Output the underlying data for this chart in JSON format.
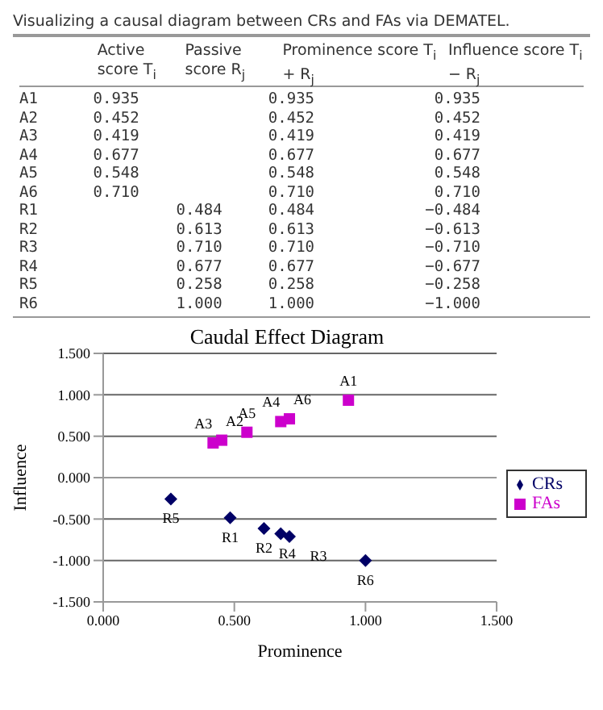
{
  "chart_data": {
    "type": "scatter",
    "title": "Caudal Effect Diagram",
    "xlabel": "Prominence",
    "ylabel": "Influence",
    "annotations": [
      "Visualizing a causal diagram between CRs and FAs via DEMATEL.",
      "Active score T$_{i}$",
      "Passive score R$_{j}$",
      "Prominence score T$_{i}$ + R$_{j}$",
      "Influence score T$_{i}$ − R$_{j}$",
      "A1      0.935              0.935             0.935",
      "A2      0.452              0.452             0.452",
      "A3      0.419              0.419             0.419",
      "A4      0.677              0.677             0.677",
      "A5      0.548              0.548             0.548",
      "A6      0.710              0.710             0.710",
      "R1               0.484     0.484            −0.484",
      "R2               0.613     0.613            −0.613",
      "R3               0.710     0.710            −0.710",
      "R4               0.677     0.677            −0.677",
      "R5               0.258     0.258            −0.258",
      "R6               1.000     1.000            −1.000"
    ],
    "xlim": [
      0,
      1.5
    ],
    "xticks": [
      {
        "value": 0,
        "label": "0.000"
      },
      {
        "value": 0.5,
        "label": "0.500"
      },
      {
        "value": 1,
        "label": "1.000"
      },
      {
        "value": 1.5,
        "label": "1.500"
      }
    ],
    "ylim": [
      -1.5,
      1.5
    ],
    "yticks": [
      {
        "value": -1.5,
        "label": "-1.500"
      },
      {
        "value": -1,
        "label": "-1.000"
      },
      {
        "value": -0.5,
        "label": "-0.500"
      },
      {
        "value": 0,
        "label": "0.000"
      },
      {
        "value": 0.5,
        "label": "0.500"
      },
      {
        "value": 1,
        "label": "1.000"
      },
      {
        "value": 1.5,
        "label": "1.500"
      }
    ],
    "grid": "y",
    "legend": "right",
    "series": [
      {
        "name": "CRs",
        "color": "#000066",
        "marker": "diamond",
        "x": [
          0.484,
          0.613,
          0.71,
          0.677,
          0.258,
          1.0
        ],
        "values": [
          -0.484,
          -0.613,
          -0.71,
          -0.677,
          -0.258,
          -1.0
        ],
        "value_labels": [
          "R1",
          "R2",
          "R3",
          "R4",
          "R5",
          "R6"
        ]
      },
      {
        "name": "FAs",
        "color": "#cc00cc",
        "marker": "square",
        "x": [
          0.935,
          0.452,
          0.419,
          0.677,
          0.548,
          0.71
        ],
        "values": [
          0.935,
          0.452,
          0.419,
          0.677,
          0.548,
          0.71
        ],
        "value_labels": [
          "A1",
          "A2",
          "A3",
          "A4",
          "A5",
          "A6"
        ]
      }
    ]
  }
}
